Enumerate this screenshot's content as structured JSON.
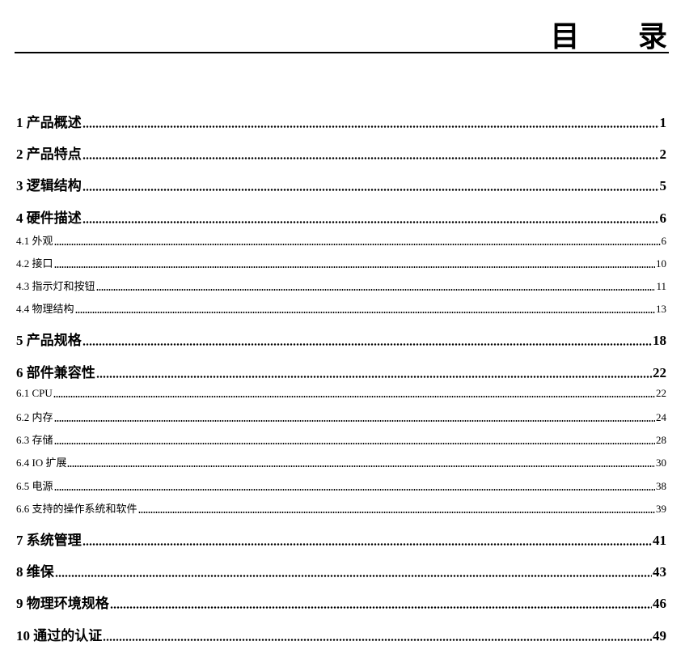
{
  "title": "目 录",
  "entries": [
    {
      "label": "1 产品概述",
      "page": "1",
      "level": 1
    },
    {
      "label": "2 产品特点",
      "page": "2",
      "level": 1
    },
    {
      "label": "3 逻辑结构",
      "page": "5",
      "level": 1
    },
    {
      "label": "4 硬件描述",
      "page": "6",
      "level": 1
    },
    {
      "label": "4.1 外观",
      "page": "6",
      "level": 2
    },
    {
      "label": "4.2 接口",
      "page": "10",
      "level": 2
    },
    {
      "label": "4.3 指示灯和按钮",
      "page": "11",
      "level": 2
    },
    {
      "label": "4.4 物理结构",
      "page": "13",
      "level": 2
    },
    {
      "label": "5 产品规格",
      "page": "18",
      "level": 1
    },
    {
      "label": "6 部件兼容性",
      "page": "22",
      "level": 1
    },
    {
      "label": "6.1 CPU",
      "page": "22",
      "level": 2
    },
    {
      "label": "6.2 内存",
      "page": "24",
      "level": 2
    },
    {
      "label": "6.3 存储",
      "page": "28",
      "level": 2
    },
    {
      "label": "6.4 IO 扩展",
      "page": "30",
      "level": 2
    },
    {
      "label": "6.5 电源",
      "page": "38",
      "level": 2
    },
    {
      "label": "6.6 支持的操作系统和软件",
      "page": "39",
      "level": 2
    },
    {
      "label": "7 系统管理",
      "page": "41",
      "level": 1
    },
    {
      "label": "8 维保",
      "page": "43",
      "level": 1
    },
    {
      "label": "9 物理环境规格",
      "page": "46",
      "level": 1
    },
    {
      "label": "10 通过的认证",
      "page": "49",
      "level": 1
    }
  ]
}
